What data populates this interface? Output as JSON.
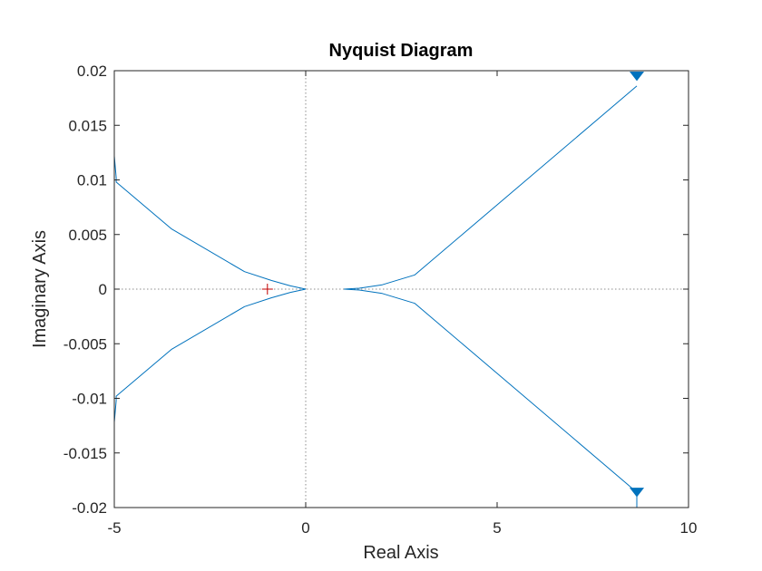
{
  "chart_data": {
    "type": "line",
    "title": "Nyquist Diagram",
    "xlabel": "Real Axis",
    "ylabel": "Imaginary Axis",
    "xlim": [
      -5,
      10
    ],
    "ylim": [
      -0.02,
      0.02
    ],
    "x_ticks": [
      "-5",
      "0",
      "5",
      "10"
    ],
    "y_ticks": [
      "-0.02",
      "-0.015",
      "-0.01",
      "-0.005",
      "0",
      "0.005",
      "0.01",
      "0.015",
      "0.02"
    ],
    "grid": false,
    "colors": {
      "curve": "#0072BD",
      "critical_point": "#C00000",
      "zero_lines": "#8c8c8c",
      "axes": "#262626"
    },
    "critical_point": {
      "x": -1,
      "y": 0,
      "marker": "+"
    },
    "series": [
      {
        "role": "upper-left-branch",
        "x": [
          -5.0,
          -4.95,
          -4.95,
          -3.5,
          -1.6,
          -0.9,
          -0.4,
          0.0
        ],
        "y": [
          0.0122,
          0.0102,
          0.0098,
          0.0055,
          0.0016,
          0.0008,
          0.0003,
          0.0
        ],
        "arrow": null
      },
      {
        "role": "lower-left-branch",
        "x": [
          -5.0,
          -4.95,
          -4.95,
          -3.5,
          -1.6,
          -0.9,
          -0.4,
          0.0
        ],
        "y": [
          -0.0122,
          -0.0102,
          -0.0098,
          -0.0055,
          -0.0016,
          -0.0008,
          -0.0003,
          0.0
        ],
        "arrow": null
      },
      {
        "role": "upper-right-branch",
        "x": [
          1.0,
          1.4,
          2.0,
          2.85,
          8.65
        ],
        "y": [
          0.0,
          8e-05,
          0.0004,
          0.0013,
          0.0186
        ],
        "arrow": {
          "x": 8.65,
          "y": 0.0195,
          "direction": "down"
        }
      },
      {
        "role": "lower-right-branch",
        "x": [
          1.0,
          1.4,
          2.0,
          2.85,
          8.65,
          8.65
        ],
        "y": [
          0.0,
          -8e-05,
          -0.0004,
          -0.0013,
          -0.0186,
          -0.02
        ],
        "arrow": {
          "x": 8.65,
          "y": -0.0186,
          "direction": "down"
        }
      }
    ]
  }
}
